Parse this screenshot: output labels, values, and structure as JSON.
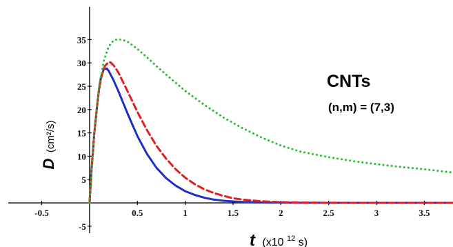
{
  "chart_data": {
    "type": "line",
    "title": "",
    "annotation": {
      "title": "CNTs",
      "subtitle": "(n,m) = (7,3)"
    },
    "ylabel": {
      "symbol": "D",
      "unit": "(cm²/s)"
    },
    "xlabel": {
      "symbol": "t",
      "unit_prefix": "(x10",
      "unit_exp": "12",
      "unit_suffix": " s)"
    },
    "xlim": [
      -0.85,
      3.8
    ],
    "ylim": [
      -6.5,
      42
    ],
    "x_ticks": [
      -0.5,
      0.5,
      1,
      1.5,
      2,
      2.5,
      3,
      3.5
    ],
    "x_tick_labels": [
      "-0.5",
      "0.5",
      "1",
      "1.5",
      "2",
      "2.5",
      "3",
      "3.5"
    ],
    "y_ticks": [
      -5,
      5,
      10,
      15,
      20,
      25,
      30,
      35
    ],
    "y_tick_labels": [
      "-5",
      "5",
      "10",
      "15",
      "20",
      "25",
      "30",
      "35"
    ],
    "grid": false,
    "series": [
      {
        "color": "#1f2fbf",
        "dash": "solid",
        "x": [
          0,
          0.02,
          0.05,
          0.08,
          0.1,
          0.12,
          0.15,
          0.18,
          0.2,
          0.25,
          0.3,
          0.4,
          0.5,
          0.6,
          0.7,
          0.8,
          0.9,
          1.0,
          1.1,
          1.2,
          1.3,
          1.4,
          1.5,
          1.6,
          1.8,
          2.0,
          2.5,
          3.0,
          3.5,
          3.8
        ],
        "y": [
          0,
          7,
          15,
          21,
          24.5,
          27,
          28.7,
          28.8,
          28.3,
          26.3,
          24,
          19,
          14.3,
          10.5,
          7.5,
          5.3,
          3.7,
          2.5,
          1.7,
          1.1,
          0.7,
          0.45,
          0.3,
          0.2,
          0.08,
          0.03,
          0,
          0,
          0,
          0
        ]
      },
      {
        "color": "#e02020",
        "dash": "dashed",
        "x": [
          0,
          0.02,
          0.05,
          0.08,
          0.1,
          0.13,
          0.16,
          0.2,
          0.22,
          0.25,
          0.3,
          0.4,
          0.5,
          0.6,
          0.7,
          0.8,
          0.9,
          1.0,
          1.1,
          1.2,
          1.3,
          1.4,
          1.5,
          1.6,
          1.8,
          2.0,
          2.2,
          2.5,
          3.0,
          3.5,
          3.8
        ],
        "y": [
          0,
          7,
          15,
          21,
          24.5,
          27.5,
          29.3,
          30.2,
          30.1,
          29.5,
          28,
          23.8,
          19.5,
          15.6,
          12.2,
          9.5,
          7.2,
          5.4,
          4.0,
          2.9,
          2.1,
          1.5,
          1.0,
          0.7,
          0.35,
          0.15,
          0.07,
          0.02,
          0,
          0,
          0
        ]
      },
      {
        "color": "#22c02a",
        "dash": "dotted",
        "x": [
          0,
          0.02,
          0.05,
          0.08,
          0.1,
          0.15,
          0.2,
          0.25,
          0.3,
          0.35,
          0.4,
          0.5,
          0.6,
          0.7,
          0.8,
          1.0,
          1.2,
          1.4,
          1.6,
          1.8,
          2.0,
          2.2,
          2.5,
          2.8,
          3.0,
          3.3,
          3.5,
          3.8
        ],
        "y": [
          0,
          7,
          15,
          21,
          25,
          30.5,
          33.5,
          34.8,
          35.1,
          34.9,
          34.5,
          33,
          31.2,
          29.3,
          27.5,
          24,
          21,
          18.3,
          16,
          14,
          12.3,
          11,
          9.8,
          8.8,
          8.3,
          7.6,
          7.2,
          6.5
        ]
      }
    ]
  }
}
